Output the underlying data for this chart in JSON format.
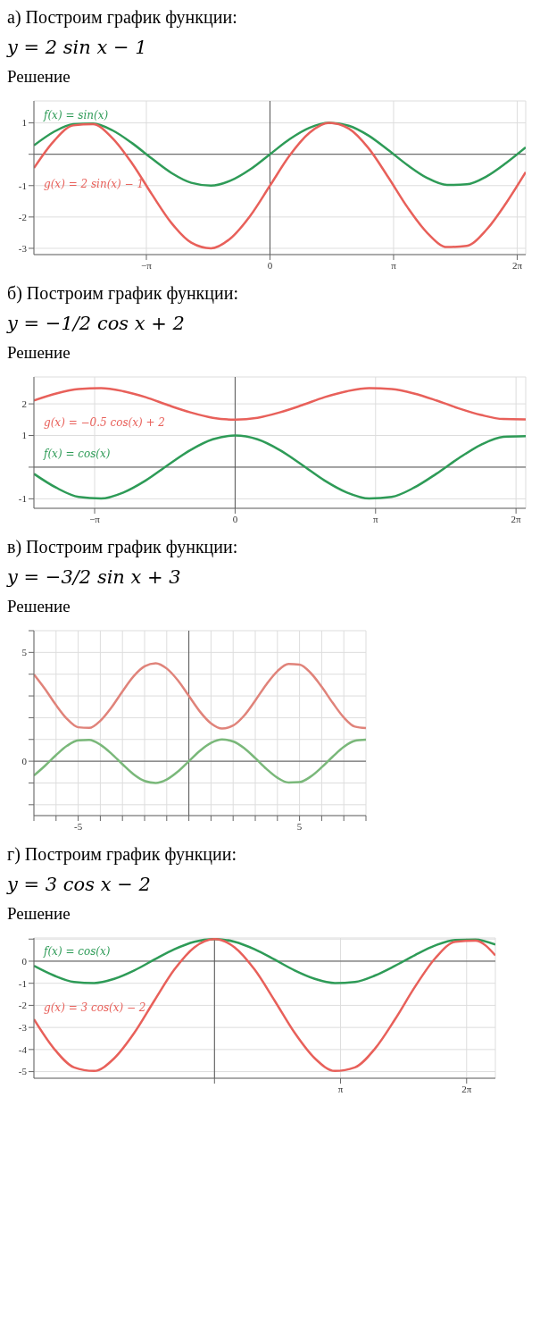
{
  "chart_data": [
    {
      "type": "line",
      "title": "а) Построим график функции:",
      "subtitle": "y = 2 sin x − 1",
      "annotations": [
        "Решение"
      ],
      "grid": true,
      "x": [
        -6,
        -5.5,
        -5,
        -4.5,
        -4,
        -3.5,
        -3,
        -2.5,
        -2,
        -1.5,
        -1,
        -0.5,
        0,
        0.5,
        1,
        1.5,
        2,
        2.5,
        3,
        3.5,
        4,
        4.5,
        5,
        5.5,
        6,
        6.5
      ],
      "series": [
        {
          "name": "f(x) = sin(x)",
          "color": "#2e9b57",
          "values": [
            0.28,
            0.71,
            0.96,
            0.98,
            0.76,
            0.35,
            -0.14,
            -0.6,
            -0.91,
            -1.0,
            -0.84,
            -0.48,
            0,
            0.48,
            0.84,
            1.0,
            0.91,
            0.6,
            0.14,
            -0.35,
            -0.76,
            -0.98,
            -0.96,
            -0.71,
            -0.28,
            0.22
          ]
        },
        {
          "name": "g(x) = 2 sin(x) − 1",
          "color": "#e8605a",
          "values": [
            -0.44,
            0.41,
            0.92,
            0.96,
            0.51,
            -0.3,
            -1.28,
            -2.2,
            -2.82,
            -3.0,
            -2.68,
            -1.96,
            -1,
            -0.04,
            0.68,
            1.0,
            0.82,
            0.2,
            -0.72,
            -1.7,
            -2.51,
            -2.96,
            -2.92,
            -2.41,
            -1.56,
            -0.57
          ]
        }
      ],
      "xlim": [
        -6,
        6.5
      ],
      "xticks": [
        {
          "value": -3.1416,
          "label": "−π"
        },
        0,
        {
          "value": 3.1416,
          "label": "π"
        },
        {
          "value": 6.2832,
          "label": "2π"
        }
      ],
      "ylim": [
        -3.2,
        1.7
      ],
      "yticks": [
        -3,
        -2,
        -1,
        {
          "value": 0,
          "label": null
        },
        1
      ]
    },
    {
      "type": "line",
      "title": "б) Построим график функции:",
      "subtitle": "y = −1/2 cos x + 2",
      "annotations": [
        "Решение"
      ],
      "grid": true,
      "x": [
        -4.5,
        -4,
        -3.5,
        -3,
        -2.5,
        -2,
        -1.5,
        -1,
        -0.5,
        0,
        0.5,
        1,
        1.5,
        2,
        2.5,
        3,
        3.5,
        4,
        4.5,
        5,
        5.5,
        6,
        6.5
      ],
      "series": [
        {
          "name": "g(x) = −0.5 cos(x) + 2",
          "color": "#e8605a",
          "values": [
            2.11,
            2.33,
            2.47,
            2.5,
            2.4,
            2.21,
            1.96,
            1.73,
            1.56,
            1.5,
            1.56,
            1.73,
            1.96,
            2.21,
            2.4,
            2.5,
            2.47,
            2.33,
            2.11,
            1.86,
            1.65,
            1.52,
            1.51
          ]
        },
        {
          "name": "f(x) = cos(x)",
          "color": "#2e9b57",
          "values": [
            -0.21,
            -0.65,
            -0.94,
            -0.99,
            -0.8,
            -0.42,
            0.07,
            0.54,
            0.88,
            1,
            0.88,
            0.54,
            0.07,
            -0.42,
            -0.8,
            -0.99,
            -0.94,
            -0.65,
            -0.21,
            0.28,
            0.71,
            0.96,
            0.98
          ]
        }
      ],
      "xlim": [
        -4.5,
        6.5
      ],
      "xticks": [
        {
          "value": -3.1416,
          "label": "−π"
        },
        0,
        {
          "value": 3.1416,
          "label": "π"
        },
        {
          "value": 6.2832,
          "label": "2π"
        }
      ],
      "ylim": [
        -1.3,
        2.85
      ],
      "yticks": [
        -1,
        {
          "value": 0,
          "label": null
        },
        1,
        2
      ]
    },
    {
      "type": "line",
      "title": "в) Построим график функции:",
      "subtitle": "y = −3/2 sin x + 3",
      "annotations": [
        "Решение"
      ],
      "grid": true,
      "x": [
        -7,
        -6.5,
        -6,
        -5.5,
        -5,
        -4.5,
        -4,
        -3.5,
        -3,
        -2.5,
        -2,
        -1.5,
        -1,
        -0.5,
        0,
        0.5,
        1,
        1.5,
        2,
        2.5,
        3,
        3.5,
        4,
        4.5,
        5,
        5.5,
        6,
        6.5,
        7,
        7.5,
        8
      ],
      "series": [
        {
          "color": "#e0837a",
          "values": [
            3.99,
            3.32,
            2.58,
            1.94,
            1.56,
            1.53,
            1.86,
            2.47,
            3.21,
            3.9,
            4.36,
            4.5,
            4.26,
            3.72,
            3,
            2.28,
            1.74,
            1.5,
            1.64,
            2.1,
            2.79,
            3.53,
            4.14,
            4.47,
            4.44,
            4.06,
            3.42,
            2.68,
            2.01,
            1.59,
            1.52
          ]
        },
        {
          "color": "#7ab87a",
          "values": [
            -0.66,
            -0.21,
            0.28,
            0.71,
            0.96,
            0.98,
            0.76,
            0.35,
            -0.14,
            -0.6,
            -0.91,
            -1.0,
            -0.84,
            -0.48,
            0,
            0.48,
            0.84,
            1.0,
            0.91,
            0.6,
            0.14,
            -0.35,
            -0.76,
            -0.98,
            -0.96,
            -0.71,
            -0.28,
            0.21,
            0.66,
            0.94,
            0.99
          ]
        }
      ],
      "xlim": [
        -7,
        8
      ],
      "xticks": [
        {
          "value": -7,
          "label": null
        },
        {
          "value": -6,
          "label": null
        },
        -5,
        {
          "value": -4,
          "label": null
        },
        {
          "value": -3,
          "label": null
        },
        {
          "value": -2,
          "label": null
        },
        {
          "value": -1,
          "label": null
        },
        {
          "value": 0,
          "label": null
        },
        {
          "value": 1,
          "label": null
        },
        {
          "value": 2,
          "label": null
        },
        {
          "value": 3,
          "label": null
        },
        {
          "value": 4,
          "label": null
        },
        5,
        {
          "value": 6,
          "label": null
        },
        {
          "value": 7,
          "label": null
        },
        {
          "value": 8,
          "label": null
        }
      ],
      "ylim": [
        -2.5,
        6
      ],
      "yticks": [
        {
          "value": -2,
          "label": null
        },
        {
          "value": -1,
          "label": null
        },
        0,
        {
          "value": 1,
          "label": null
        },
        {
          "value": 2,
          "label": null
        },
        {
          "value": 3,
          "label": null
        },
        {
          "value": 4,
          "label": null
        },
        5,
        {
          "value": 6,
          "label": null
        }
      ]
    },
    {
      "type": "line",
      "title": "г) Построим график функции:",
      "subtitle": "y = 3 cos x − 2",
      "annotations": [
        "Решение"
      ],
      "grid": true,
      "x": [
        -4.5,
        -4,
        -3.5,
        -3,
        -2.5,
        -2,
        -1.5,
        -1,
        -0.5,
        0,
        0.5,
        1,
        1.5,
        2,
        2.5,
        3,
        3.5,
        4,
        4.5,
        5,
        5.5,
        6,
        6.5,
        7
      ],
      "series": [
        {
          "name": "f(x) = cos(x)",
          "color": "#2e9b57",
          "values": [
            -0.21,
            -0.65,
            -0.94,
            -0.99,
            -0.8,
            -0.42,
            0.07,
            0.54,
            0.88,
            1,
            0.88,
            0.54,
            0.07,
            -0.42,
            -0.8,
            -0.99,
            -0.94,
            -0.65,
            -0.21,
            0.28,
            0.71,
            0.96,
            0.98,
            0.75
          ]
        },
        {
          "name": "g(x) = 3 cos(x) − 2",
          "color": "#e8605a",
          "values": [
            -2.63,
            -3.96,
            -4.81,
            -4.97,
            -4.4,
            -3.25,
            -1.79,
            -0.38,
            0.63,
            1,
            0.63,
            -0.38,
            -1.79,
            -3.25,
            -4.4,
            -4.97,
            -4.81,
            -3.96,
            -2.63,
            -1.15,
            0.13,
            0.88,
            0.93,
            0.26
          ]
        }
      ],
      "xlim": [
        -4.5,
        7
      ],
      "xticks": [
        {
          "value": 0,
          "label": null
        },
        {
          "value": 3.1416,
          "label": "π"
        },
        {
          "value": 6.2832,
          "label": "2π"
        }
      ],
      "ylim": [
        -5.3,
        1.05
      ],
      "yticks": [
        -5,
        -4,
        -3,
        -2,
        -1,
        0,
        {
          "value": 1,
          "label": null
        }
      ]
    }
  ]
}
